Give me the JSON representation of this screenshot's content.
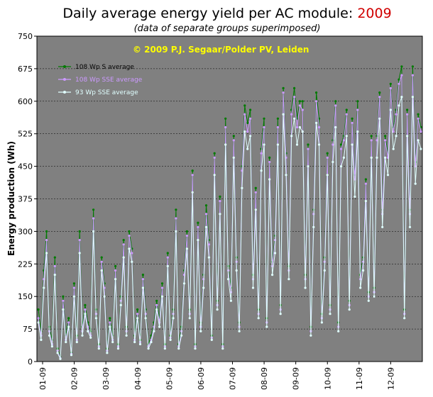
{
  "chart_data": {
    "type": "line",
    "title": "Daily average energy yield per AC module:",
    "title_year": "2009",
    "subtitle": "(data of separate groups superimposed)",
    "annotation": "© 2009 P.J. Segaar/Polder PV, Leiden",
    "xlabel": "",
    "ylabel": "Energy production (Wh)",
    "ylim": [
      0,
      750
    ],
    "yticks": [
      0,
      75,
      150,
      225,
      300,
      375,
      450,
      525,
      600,
      675,
      750
    ],
    "xticks": [
      "01-09",
      "02-09",
      "03-09",
      "04-09",
      "05-09",
      "06-09",
      "07-09",
      "08-09",
      "09-09",
      "10-09",
      "11-09",
      "12-09"
    ],
    "plot_background": "#808080",
    "grid": true,
    "legend_position": "top-left",
    "series": [
      {
        "name": "108 Wp S average",
        "color": "#007a00",
        "values": [
          120,
          70,
          210,
          300,
          80,
          50,
          240,
          30,
          10,
          150,
          60,
          100,
          20,
          180,
          60,
          300,
          80,
          130,
          90,
          70,
          350,
          120,
          40,
          240,
          180,
          30,
          100,
          60,
          220,
          40,
          150,
          280,
          80,
          300,
          260,
          60,
          120,
          50,
          200,
          120,
          40,
          60,
          90,
          140,
          100,
          180,
          40,
          250,
          60,
          120,
          350,
          40,
          80,
          210,
          300,
          120,
          440,
          40,
          320,
          90,
          200,
          360,
          280,
          60,
          480,
          140,
          380,
          40,
          560,
          220,
          170,
          520,
          240,
          90,
          450,
          590,
          550,
          580,
          200,
          400,
          120,
          490,
          560,
          100,
          470,
          230,
          290,
          560,
          130,
          630,
          480,
          220,
          580,
          630,
          560,
          600,
          600,
          200,
          500,
          80,
          350,
          620,
          560,
          110,
          240,
          480,
          130,
          510,
          600,
          90,
          500,
          520,
          580,
          140,
          560,
          430,
          600,
          200,
          240,
          420,
          160,
          520,
          170,
          520,
          620,
          350,
          520,
          480,
          640,
          540,
          580,
          650,
          680,
          120,
          580,
          350,
          680,
          460,
          570,
          540
        ]
      },
      {
        "name": "108 Wp SSE average",
        "color": "#cc99ff",
        "values": [
          100,
          60,
          190,
          280,
          70,
          40,
          220,
          25,
          8,
          140,
          50,
          90,
          18,
          170,
          50,
          280,
          70,
          120,
          80,
          60,
          330,
          110,
          35,
          230,
          170,
          25,
          90,
          50,
          210,
          35,
          140,
          270,
          70,
          290,
          250,
          50,
          110,
          45,
          190,
          110,
          35,
          50,
          80,
          130,
          90,
          170,
          35,
          240,
          55,
          110,
          330,
          35,
          70,
          200,
          290,
          110,
          430,
          35,
          310,
          80,
          190,
          340,
          270,
          55,
          470,
          130,
          370,
          35,
          540,
          210,
          160,
          510,
          230,
          80,
          440,
          570,
          530,
          560,
          190,
          390,
          110,
          480,
          540,
          90,
          460,
          220,
          280,
          540,
          120,
          620,
          470,
          210,
          570,
          610,
          540,
          590,
          580,
          190,
          490,
          70,
          340,
          600,
          540,
          100,
          230,
          470,
          120,
          500,
          590,
          80,
          490,
          510,
          570,
          130,
          550,
          420,
          580,
          190,
          230,
          410,
          150,
          510,
          160,
          510,
          610,
          340,
          510,
          470,
          630,
          530,
          570,
          640,
          660,
          110,
          570,
          340,
          660,
          450,
          560,
          530
        ]
      },
      {
        "name": "93 Wp SSE average",
        "color": "#e0ffff",
        "values": [
          90,
          50,
          170,
          250,
          60,
          35,
          200,
          20,
          6,
          120,
          45,
          80,
          15,
          150,
          45,
          250,
          60,
          110,
          70,
          55,
          300,
          100,
          30,
          210,
          150,
          20,
          80,
          45,
          190,
          30,
          130,
          240,
          60,
          260,
          230,
          45,
          100,
          40,
          170,
          100,
          30,
          45,
          70,
          120,
          80,
          150,
          30,
          220,
          50,
          100,
          300,
          30,
          60,
          180,
          260,
          100,
          390,
          30,
          280,
          70,
          170,
          310,
          240,
          50,
          430,
          120,
          340,
          30,
          500,
          190,
          140,
          470,
          210,
          70,
          400,
          530,
          490,
          520,
          170,
          350,
          100,
          440,
          500,
          80,
          420,
          200,
          250,
          500,
          110,
          570,
          430,
          190,
          520,
          560,
          500,
          540,
          530,
          170,
          450,
          60,
          310,
          550,
          500,
          90,
          210,
          430,
          110,
          460,
          540,
          70,
          450,
          470,
          520,
          120,
          500,
          380,
          530,
          170,
          210,
          370,
          140,
          470,
          150,
          470,
          560,
          310,
          470,
          430,
          580,
          490,
          520,
          590,
          610,
          100,
          520,
          310,
          610,
          410,
          510,
          490
        ]
      }
    ]
  }
}
